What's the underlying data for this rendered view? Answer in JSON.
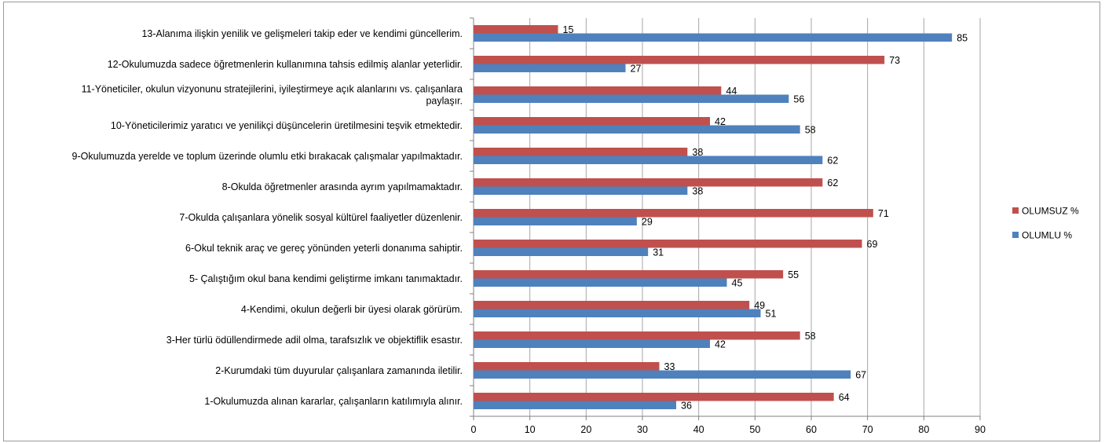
{
  "chart_data": {
    "type": "bar",
    "orientation": "horizontal",
    "categories": [
      "13-Alanıma ilişkin yenilik ve gelişmeleri takip eder ve kendimi güncellerim.",
      "12-Okulumuzda sadece öğretmenlerin kullanımına tahsis edilmiş alanlar yeterlidir.",
      "11-Yöneticiler, okulun vizyonunu stratejilerini, iyileştirmeye açık alanlarını vs. çalışanlara paylaşır.",
      "10-Yöneticilerimiz yaratıcı ve yenilikçi düşüncelerin üretilmesini teşvik etmektedir.",
      "9-Okulumuzda yerelde ve toplum üzerinde olumlu etki bırakacak çalışmalar yapılmaktadır.",
      "8-Okulda öğretmenler arasında ayrım yapılmamaktadır.",
      "7-Okulda çalışanlara yönelik sosyal kültürel faaliyetler düzenlenir.",
      "6-Okul teknik araç ve gereç yönünden yeterli donanıma sahiptir.",
      "5- Çalıştığım okul bana kendimi geliştirme imkanı tanımaktadır.",
      "4-Kendimi, okulun değerli bir üyesi olarak görürüm.",
      "3-Her türlü ödüllendirmede adil olma, tarafsızlık ve objektiflik esastır.",
      "2-Kurumdaki tüm duyurular çalışanlara zamanında iletilir.",
      "1-Okulumuzda alınan kararlar, çalışanların katılımıyla alınır."
    ],
    "category_lines": [
      [
        "13-Alanıma ilişkin yenilik ve gelişmeleri takip eder ve kendimi güncellerim."
      ],
      [
        "12-Okulumuzda sadece öğretmenlerin kullanımına tahsis edilmiş alanlar yeterlidir."
      ],
      [
        "11-Yöneticiler, okulun vizyonunu stratejilerini, iyileştirmeye açık alanlarını vs. çalışanlara",
        "paylaşır."
      ],
      [
        "10-Yöneticilerimiz yaratıcı ve yenilikçi düşüncelerin üretilmesini teşvik etmektedir."
      ],
      [
        "9-Okulumuzda yerelde ve toplum üzerinde olumlu etki bırakacak çalışmalar yapılmaktadır."
      ],
      [
        "8-Okulda öğretmenler arasında ayrım yapılmamaktadır."
      ],
      [
        "7-Okulda çalışanlara yönelik sosyal kültürel faaliyetler düzenlenir."
      ],
      [
        "6-Okul teknik araç ve gereç yönünden yeterli donanıma sahiptir."
      ],
      [
        "5- Çalıştığım okul bana kendimi geliştirme imkanı tanımaktadır."
      ],
      [
        "4-Kendimi, okulun değerli bir üyesi olarak görürüm."
      ],
      [
        "3-Her türlü ödüllendirmede adil olma, tarafsızlık ve objektiflik esastır."
      ],
      [
        "2-Kurumdaki tüm duyurular çalışanlara zamanında iletilir."
      ],
      [
        "1-Okulumuzda alınan kararlar, çalışanların katılımıyla alınır."
      ]
    ],
    "series": [
      {
        "name": "OLUMSUZ %",
        "color": "#c0504d",
        "values": [
          15,
          73,
          44,
          42,
          38,
          62,
          71,
          69,
          55,
          49,
          58,
          33,
          64
        ]
      },
      {
        "name": "OLUMLU %",
        "color": "#4f81bd",
        "values": [
          85,
          27,
          56,
          58,
          62,
          38,
          29,
          31,
          45,
          51,
          42,
          67,
          36
        ]
      }
    ],
    "xlim": [
      0,
      90
    ],
    "xticks": [
      "0",
      "10",
      "20",
      "30",
      "40",
      "50",
      "60",
      "70",
      "80",
      "90"
    ],
    "grid": "vertical",
    "legend": "right",
    "title": "",
    "xlabel": "",
    "ylabel": ""
  }
}
